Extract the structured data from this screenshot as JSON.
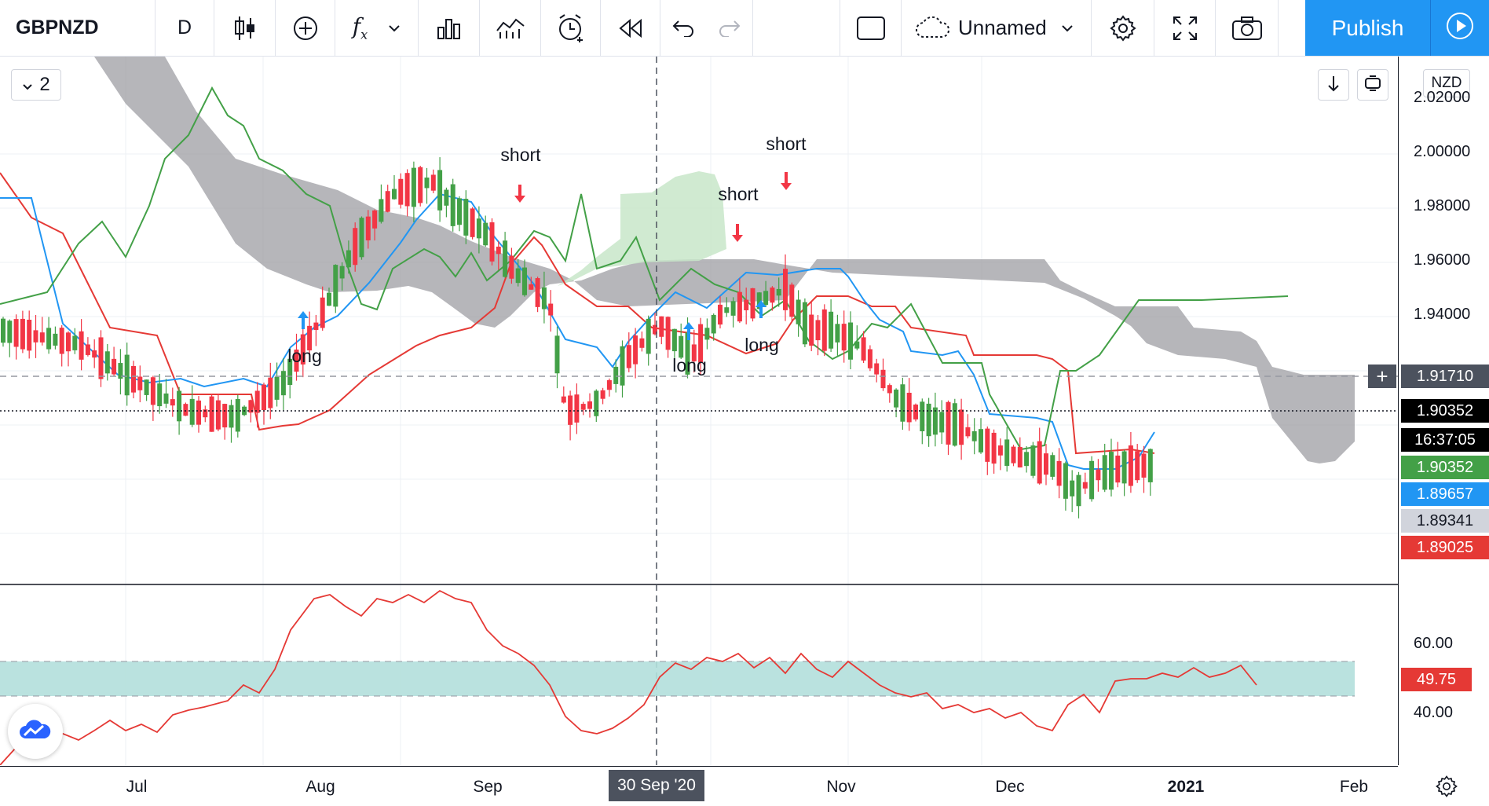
{
  "toolbar": {
    "symbol": "GBPNZD",
    "interval": "D",
    "layout_name": "Unnamed",
    "publish_label": "Publish"
  },
  "legend": {
    "collapsed_count": "2"
  },
  "currency": "NZD",
  "price_axis": {
    "ticks": [
      "2.02000",
      "2.00000",
      "1.98000",
      "1.96000",
      "1.94000",
      "1.91710",
      "60.00",
      "40.00"
    ],
    "badges": [
      {
        "value": "1.91710",
        "color": "#4c525e"
      },
      {
        "value": "1.90352",
        "color": "#000000"
      },
      {
        "value": "16:37:05",
        "color": "#000000"
      },
      {
        "value": "1.90352",
        "color": "#43a047"
      },
      {
        "value": "1.89657",
        "color": "#2196f3"
      },
      {
        "value": "1.89341",
        "color": "#d1d4dc"
      },
      {
        "value": "1.89025",
        "color": "#e53935"
      }
    ],
    "rsi_value": "49.75"
  },
  "time_axis": {
    "labels": [
      "Jul",
      "Aug",
      "Sep",
      "Nov",
      "Dec",
      "2021",
      "Feb"
    ],
    "cursor_date": "30 Sep '20"
  },
  "signals": [
    "long",
    "short",
    "long",
    "short",
    "long",
    "short"
  ],
  "colors": {
    "up": "#43a047",
    "down": "#f23645",
    "tenkan": "#2196f3",
    "kijun": "#e53935",
    "chikou": "#43a047",
    "cloud_bear": "#9e9ea3",
    "cloud_bull": "#c8e6c9",
    "rsi": "#e53935",
    "rsi_band": "#b2dfdb"
  },
  "chart_data": {
    "type": "candlestick",
    "symbol": "GBPNZD",
    "ylim": [
      1.875,
      2.03
    ],
    "current_price": 1.90352,
    "rsi_current": 49.75,
    "rsi_ylim": [
      20,
      80
    ]
  }
}
